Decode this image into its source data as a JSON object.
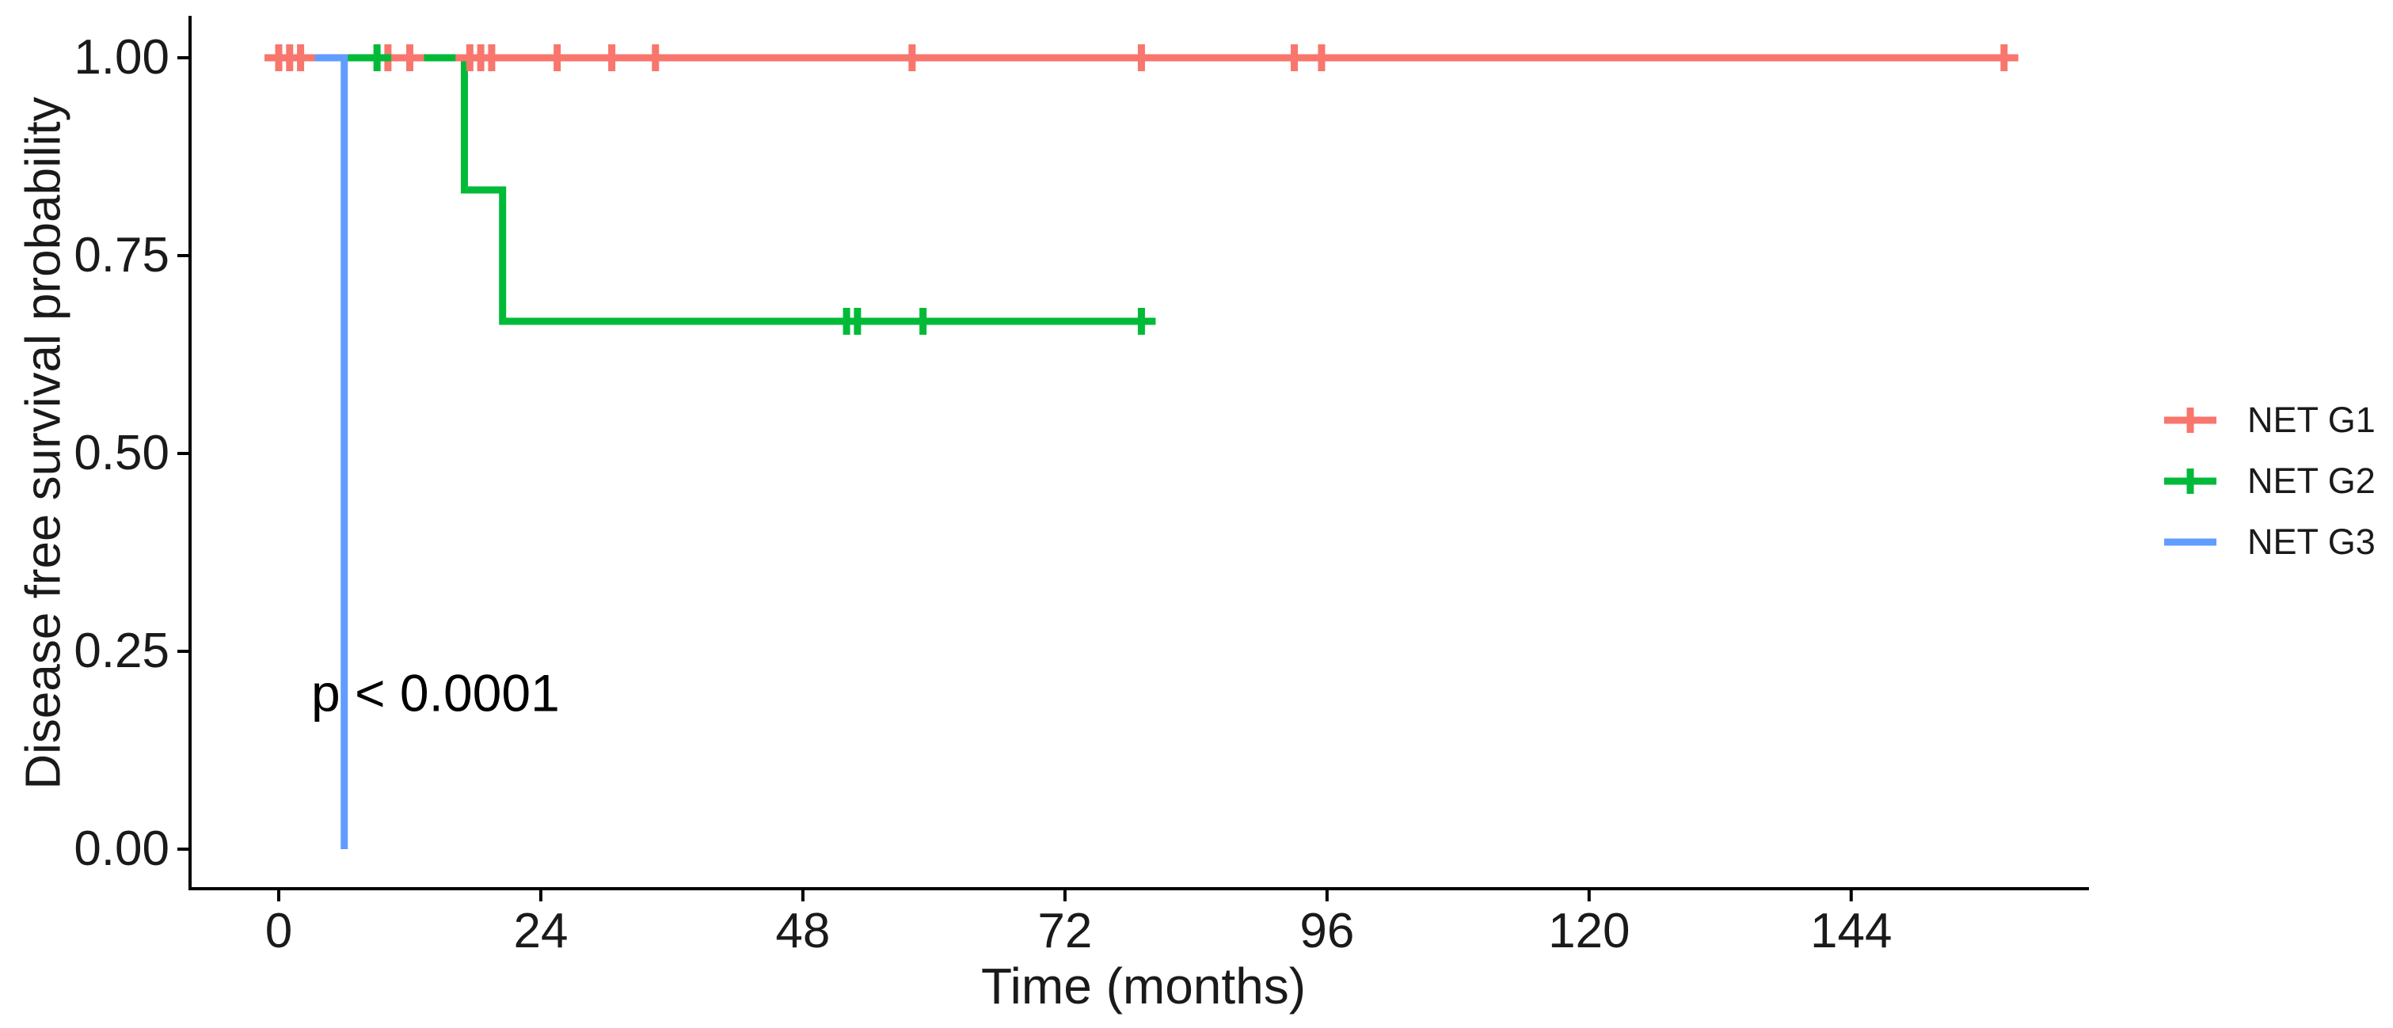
{
  "chart_data": {
    "type": "line",
    "subtype": "kaplan-meier-step",
    "title": "",
    "xlabel": "Time (months)",
    "ylabel": "Disease free survival probability",
    "x_ticks": [
      0,
      24,
      48,
      72,
      96,
      120,
      144
    ],
    "y_ticks": [
      {
        "value": 0.0,
        "label": "0.00"
      },
      {
        "value": 0.25,
        "label": "0.25"
      },
      {
        "value": 0.5,
        "label": "0.50"
      },
      {
        "value": 0.75,
        "label": "0.75"
      },
      {
        "value": 1.0,
        "label": "1.00"
      }
    ],
    "xlim": [
      0,
      166
    ],
    "ylim": [
      0,
      1
    ],
    "grid": false,
    "annotation": {
      "text": "p < 0.0001",
      "x": 3,
      "y": 0.196
    },
    "legend": {
      "position": "right"
    },
    "series": [
      {
        "name": "NET G1",
        "color": "#F8766D",
        "marker": "plus-censor",
        "steps": [
          [
            0,
            1.0
          ],
          [
            159,
            1.0
          ]
        ],
        "censors": [
          [
            0,
            1.0
          ],
          [
            1,
            1.0
          ],
          [
            2,
            1.0
          ],
          [
            10,
            1.0
          ],
          [
            12,
            1.0
          ],
          [
            17.5,
            1.0
          ],
          [
            18.5,
            1.0
          ],
          [
            19.5,
            1.0
          ],
          [
            25.5,
            1.0
          ],
          [
            30.5,
            1.0
          ],
          [
            34.5,
            1.0
          ],
          [
            58,
            1.0
          ],
          [
            79,
            1.0
          ],
          [
            93,
            1.0
          ],
          [
            95.5,
            1.0
          ],
          [
            158,
            1.0
          ]
        ]
      },
      {
        "name": "NET G2",
        "color": "#00BA38",
        "marker": "plus-censor",
        "steps": [
          [
            0,
            1.0
          ],
          [
            17,
            1.0
          ],
          [
            17,
            0.833
          ],
          [
            20.5,
            0.833
          ],
          [
            20.5,
            0.667
          ],
          [
            80,
            0.667
          ]
        ],
        "censors": [
          [
            9,
            1.0
          ],
          [
            52,
            0.667
          ],
          [
            53,
            0.667
          ],
          [
            59,
            0.667
          ],
          [
            79,
            0.667
          ]
        ]
      },
      {
        "name": "NET G3",
        "color": "#619CFF",
        "marker": "none",
        "steps": [
          [
            0,
            1.0
          ],
          [
            6,
            1.0
          ],
          [
            6,
            0.0
          ]
        ],
        "censors": []
      }
    ]
  }
}
